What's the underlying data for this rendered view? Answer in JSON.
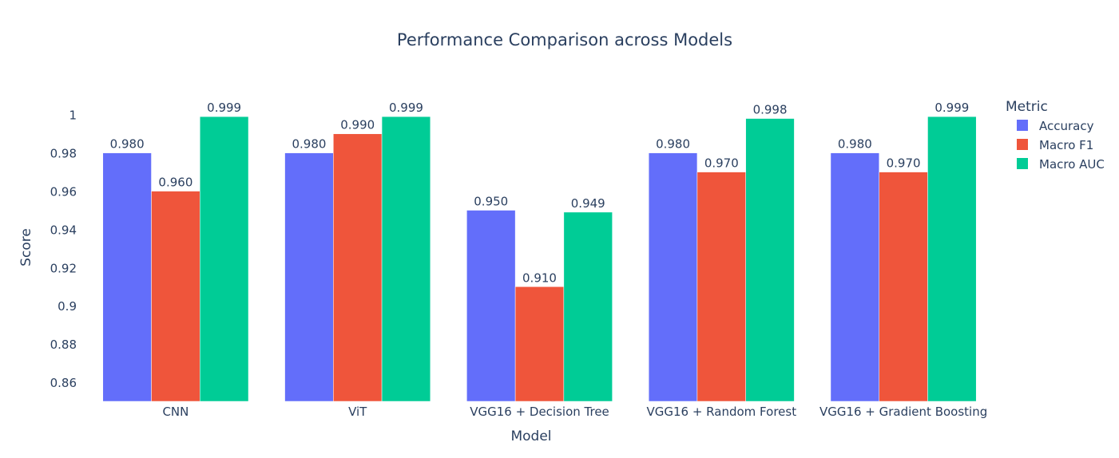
{
  "chart_data": {
    "type": "bar",
    "title": "Performance Comparison across Models",
    "xlabel": "Model",
    "ylabel": "Score",
    "categories": [
      "CNN",
      "ViT",
      "VGG16 + Decision Tree",
      "VGG16 + Random Forest",
      "VGG16 + Gradient Boosting"
    ],
    "series": [
      {
        "name": "Accuracy",
        "color": "#636efa",
        "values": [
          0.98,
          0.98,
          0.95,
          0.98,
          0.98
        ],
        "labels": [
          "0.980",
          "0.980",
          "0.950",
          "0.980",
          "0.980"
        ]
      },
      {
        "name": "Macro F1",
        "color": "#ef553b",
        "values": [
          0.96,
          0.99,
          0.91,
          0.97,
          0.97
        ],
        "labels": [
          "0.960",
          "0.990",
          "0.910",
          "0.970",
          "0.970"
        ]
      },
      {
        "name": "Macro AUC",
        "color": "#00cc96",
        "values": [
          0.999,
          0.999,
          0.949,
          0.998,
          0.999
        ],
        "labels": [
          "0.999",
          "0.999",
          "0.949",
          "0.998",
          "0.999"
        ]
      }
    ],
    "ylim": [
      0.85,
      1.012
    ],
    "yticks": [
      0.86,
      0.88,
      0.9,
      0.92,
      0.94,
      0.96,
      0.98,
      1
    ],
    "ytick_labels": [
      "0.86",
      "0.88",
      "0.9",
      "0.92",
      "0.94",
      "0.96",
      "0.98",
      "1"
    ],
    "legend_title": "Metric",
    "legend_position": "top-right",
    "grid": false,
    "barmode": "group",
    "text_color": "#2a3f5f"
  }
}
